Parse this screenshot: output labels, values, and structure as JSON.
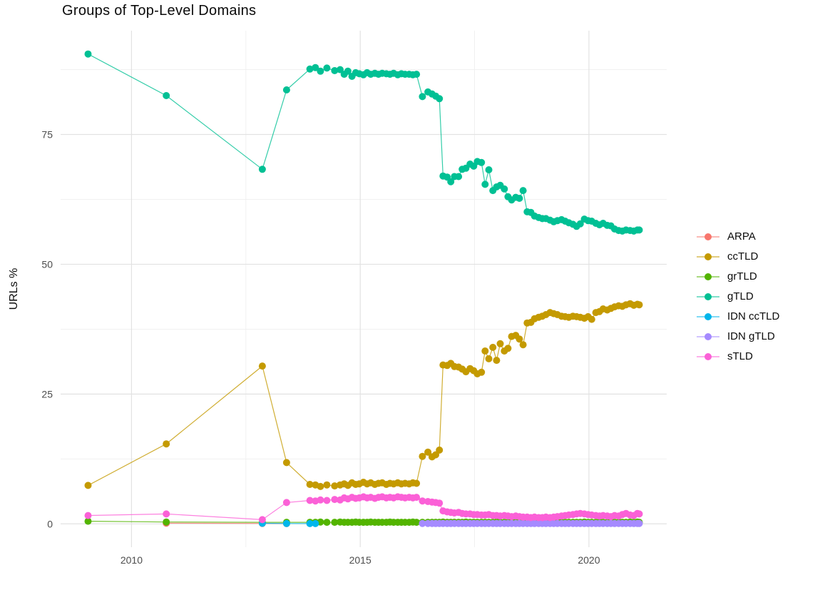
{
  "chart_data": {
    "type": "line",
    "title": "Groups of Top-Level Domains",
    "xlabel": "",
    "ylabel": "URLs %",
    "xlim": [
      2008.45,
      2021.7
    ],
    "ylim": [
      -4.5,
      95
    ],
    "x_ticks": [
      2010,
      2015,
      2020
    ],
    "x_minor": [
      2012.5,
      2017.5
    ],
    "y_ticks": [
      0,
      25,
      50,
      75
    ],
    "y_minor": [
      12.5,
      37.5,
      62.5,
      87.5
    ],
    "grid": true,
    "legend_position": "right",
    "grid_major_color": "#e2e2e2",
    "grid_minor_color": "#efefef",
    "axis_text_color": "#4d4d4d",
    "x_common": [
      2009.05,
      2010.76,
      2012.86,
      2013.39,
      2013.9,
      2014.02,
      2014.13,
      2014.27,
      2014.44,
      2014.56,
      2014.65,
      2014.73,
      2014.82,
      2014.9,
      2014.98,
      2015.07,
      2015.15,
      2015.23,
      2015.32,
      2015.4,
      2015.48,
      2015.57,
      2015.65,
      2015.73,
      2015.82,
      2015.9,
      2015.98,
      2016.07,
      2016.15,
      2016.23,
      2016.36,
      2016.48,
      2016.57,
      2016.65,
      2016.73,
      2016.81,
      2016.9,
      2016.98,
      2017.06,
      2017.15,
      2017.23,
      2017.31,
      2017.4,
      2017.48,
      2017.56,
      2017.65,
      2017.73,
      2017.81,
      2017.9,
      2017.98,
      2018.06,
      2018.15,
      2018.23,
      2018.31,
      2018.4,
      2018.48,
      2018.56,
      2018.65,
      2018.73,
      2018.81,
      2018.9,
      2018.98,
      2019.06,
      2019.15,
      2019.23,
      2019.31,
      2019.4,
      2019.48,
      2019.56,
      2019.65,
      2019.73,
      2019.81,
      2019.9,
      2019.98,
      2020.06,
      2020.15,
      2020.23,
      2020.31,
      2020.4,
      2020.48,
      2020.56,
      2020.65,
      2020.73,
      2020.81,
      2020.9,
      2020.98,
      2021.06,
      2021.1
    ],
    "series": [
      {
        "name": "ARPA",
        "color": "#F8766D",
        "x": [
          2010.76,
          2012.86,
          2013.39
        ],
        "y": [
          0.12,
          0.08,
          0.05
        ]
      },
      {
        "name": "ccTLD",
        "color": "#C49A00",
        "x": "common",
        "y": [
          7.4,
          15.4,
          30.4,
          11.8,
          7.6,
          7.5,
          7.2,
          7.5,
          7.3,
          7.5,
          7.7,
          7.4,
          7.9,
          7.6,
          7.7,
          8.0,
          7.7,
          7.9,
          7.6,
          7.8,
          7.9,
          7.6,
          7.8,
          7.7,
          7.9,
          7.7,
          7.8,
          7.7,
          7.9,
          7.8,
          13.0,
          13.8,
          12.9,
          13.3,
          14.2,
          30.6,
          30.5,
          30.9,
          30.3,
          30.2,
          29.8,
          29.3,
          29.9,
          29.5,
          28.9,
          29.2,
          33.3,
          31.8,
          34.0,
          31.5,
          34.7,
          33.3,
          33.8,
          36.1,
          36.3,
          35.6,
          34.5,
          38.7,
          38.8,
          39.5,
          39.8,
          40.0,
          40.3,
          40.7,
          40.5,
          40.3,
          40.0,
          39.9,
          39.8,
          40.0,
          39.9,
          39.8,
          39.6,
          39.9,
          39.4,
          40.7,
          40.9,
          41.4,
          41.2,
          41.5,
          41.8,
          42.0,
          41.9,
          42.2,
          42.4,
          42.1,
          42.3,
          42.2
        ]
      },
      {
        "name": "grTLD",
        "color": "#53B400",
        "x": "common",
        "y": [
          0.5,
          0.35,
          0.3,
          0.3,
          0.3,
          0.3,
          0.35,
          0.3,
          0.3,
          0.35,
          0.3,
          0.3,
          0.3,
          0.35,
          0.3,
          0.3,
          0.3,
          0.35,
          0.3,
          0.3,
          0.3,
          0.3,
          0.35,
          0.3,
          0.3,
          0.3,
          0.3,
          0.3,
          0.35,
          0.3,
          0.3,
          0.3,
          0.3,
          0.3,
          0.3,
          0.35,
          0.3,
          0.3,
          0.3,
          0.3,
          0.3,
          0.35,
          0.3,
          0.3,
          0.3,
          0.3,
          0.3,
          0.3,
          0.3,
          0.35,
          0.3,
          0.3,
          0.3,
          0.3,
          0.3,
          0.3,
          0.3,
          0.35,
          0.3,
          0.3,
          0.3,
          0.3,
          0.3,
          0.3,
          0.3,
          0.35,
          0.3,
          0.3,
          0.3,
          0.3,
          0.3,
          0.3,
          0.35,
          0.3,
          0.3,
          0.3,
          0.35,
          0.3,
          0.3,
          0.3,
          0.3,
          0.35,
          0.3,
          0.3,
          0.35,
          0.3,
          0.35,
          0.3
        ]
      },
      {
        "name": "gTLD",
        "color": "#00C094",
        "x": "common",
        "y": [
          90.5,
          82.5,
          68.3,
          83.6,
          87.6,
          87.9,
          87.2,
          87.8,
          87.3,
          87.5,
          86.6,
          87.2,
          86.2,
          86.9,
          86.7,
          86.5,
          86.9,
          86.6,
          86.8,
          86.6,
          86.8,
          86.7,
          86.6,
          86.8,
          86.5,
          86.7,
          86.6,
          86.6,
          86.5,
          86.6,
          82.3,
          83.2,
          82.8,
          82.4,
          81.9,
          67.0,
          66.8,
          65.9,
          66.9,
          66.9,
          68.3,
          68.5,
          69.3,
          68.9,
          69.8,
          69.6,
          65.4,
          68.2,
          64.2,
          64.9,
          65.2,
          64.5,
          63.0,
          62.4,
          62.9,
          62.7,
          64.2,
          60.1,
          60.0,
          59.3,
          59.0,
          58.8,
          58.8,
          58.5,
          58.2,
          58.4,
          58.6,
          58.3,
          58.0,
          57.7,
          57.3,
          57.8,
          58.7,
          58.4,
          58.3,
          57.9,
          57.6,
          57.9,
          57.5,
          57.4,
          56.8,
          56.5,
          56.4,
          56.6,
          56.5,
          56.4,
          56.6,
          56.6
        ]
      },
      {
        "name": "IDN ccTLD",
        "color": "#00B6EB",
        "x": [
          2012.86,
          2013.39,
          2013.9,
          2014.02
        ],
        "y": [
          0.1,
          0.06,
          0.05,
          0.05
        ]
      },
      {
        "name": "IDN gTLD",
        "color": "#A58AFF",
        "x": [
          2016.36,
          2016.48,
          2016.57,
          2016.65,
          2016.73,
          2016.81,
          2016.9,
          2016.98,
          2017.06,
          2017.15,
          2017.23,
          2017.31,
          2017.4,
          2017.48,
          2017.56,
          2017.65,
          2017.73,
          2017.81,
          2017.9,
          2017.98,
          2018.06,
          2018.15,
          2018.23,
          2018.31,
          2018.4,
          2018.48,
          2018.56,
          2018.65,
          2018.73,
          2018.81,
          2018.9,
          2018.98,
          2019.06,
          2019.15,
          2019.23,
          2019.31,
          2019.4,
          2019.48,
          2019.56,
          2019.65,
          2019.73,
          2019.81,
          2019.9,
          2019.98,
          2020.06,
          2020.15,
          2020.23,
          2020.31,
          2020.4,
          2020.48,
          2020.56,
          2020.65,
          2020.73,
          2020.81,
          2020.9,
          2020.98,
          2021.06,
          2021.1
        ],
        "y": [
          0.08,
          0.07,
          0.07,
          0.06,
          0.07,
          0.07,
          0.06,
          0.07,
          0.08,
          0.07,
          0.07,
          0.06,
          0.07,
          0.07,
          0.08,
          0.07,
          0.06,
          0.07,
          0.07,
          0.06,
          0.07,
          0.08,
          0.07,
          0.07,
          0.06,
          0.07,
          0.07,
          0.08,
          0.07,
          0.06,
          0.07,
          0.07,
          0.06,
          0.07,
          0.08,
          0.07,
          0.07,
          0.06,
          0.07,
          0.07,
          0.08,
          0.07,
          0.06,
          0.07,
          0.07,
          0.06,
          0.07,
          0.08,
          0.07,
          0.07,
          0.06,
          0.07,
          0.07,
          0.08,
          0.07,
          0.06,
          0.07,
          0.07
        ]
      },
      {
        "name": "sTLD",
        "color": "#FB61D7",
        "x": "common",
        "y": [
          1.6,
          1.9,
          0.8,
          4.1,
          4.5,
          4.4,
          4.6,
          4.5,
          4.7,
          4.6,
          5.0,
          4.8,
          5.1,
          4.9,
          5.0,
          5.2,
          5.0,
          5.1,
          4.9,
          5.1,
          5.2,
          5.0,
          5.1,
          5.0,
          5.2,
          5.1,
          5.0,
          5.1,
          5.0,
          5.1,
          4.4,
          4.3,
          4.2,
          4.1,
          4.0,
          2.5,
          2.3,
          2.2,
          2.1,
          2.2,
          2.0,
          1.9,
          1.9,
          1.8,
          1.8,
          1.7,
          1.7,
          1.8,
          1.6,
          1.6,
          1.5,
          1.6,
          1.5,
          1.4,
          1.5,
          1.4,
          1.3,
          1.3,
          1.2,
          1.3,
          1.2,
          1.2,
          1.3,
          1.2,
          1.3,
          1.4,
          1.5,
          1.6,
          1.7,
          1.8,
          1.9,
          2.0,
          1.9,
          1.8,
          1.7,
          1.6,
          1.5,
          1.6,
          1.5,
          1.4,
          1.6,
          1.5,
          1.8,
          2.0,
          1.7,
          1.6,
          2.0,
          1.9
        ]
      }
    ]
  }
}
